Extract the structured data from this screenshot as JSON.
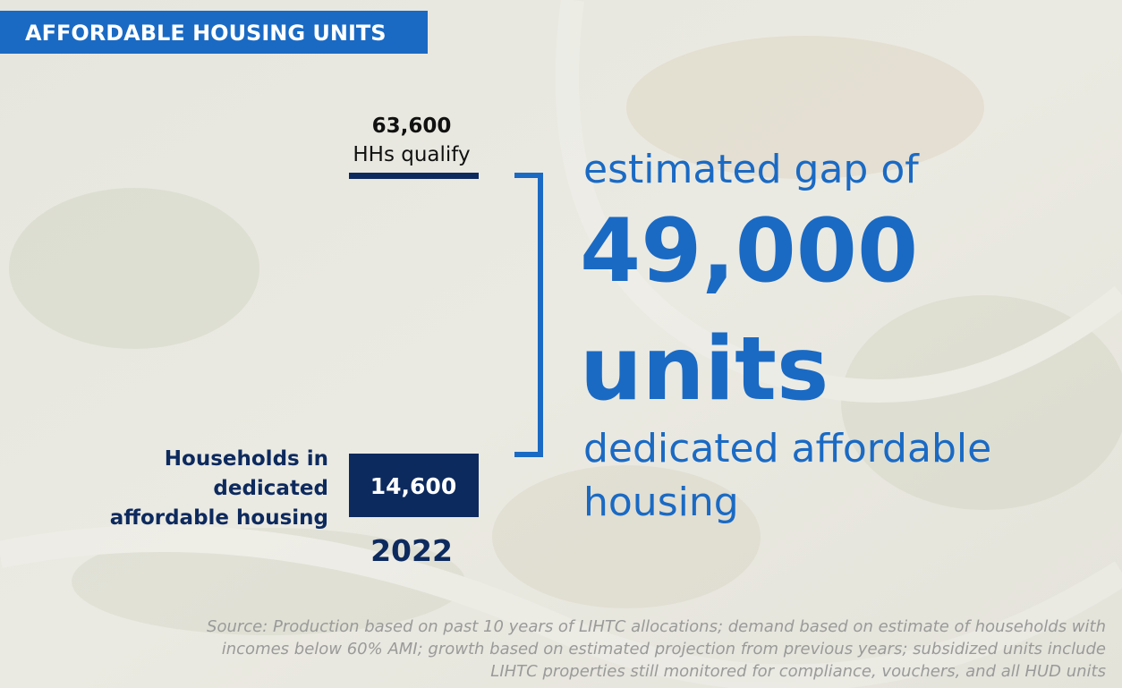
{
  "header": {
    "title": "AFFORDABLE HOUSING UNITS"
  },
  "qualify": {
    "value": "63,600",
    "label": "HHs qualify"
  },
  "gap": {
    "lead": "estimated gap of",
    "value": "49,000",
    "unit": "units",
    "tail": [
      "dedicated affordable",
      "housing"
    ]
  },
  "dedicated": {
    "label": [
      "Households in",
      "dedicated",
      "affordable housing"
    ],
    "value": "14,600",
    "year": "2022"
  },
  "source": [
    "Source: Production based on past 10 years of LIHTC allocations; demand based on estimate of households with",
    "incomes below 60% AMI; growth based on estimated projection from previous years; subsidized units include",
    "LIHTC properties still monitored for compliance, vouchers, and all HUD units"
  ]
}
